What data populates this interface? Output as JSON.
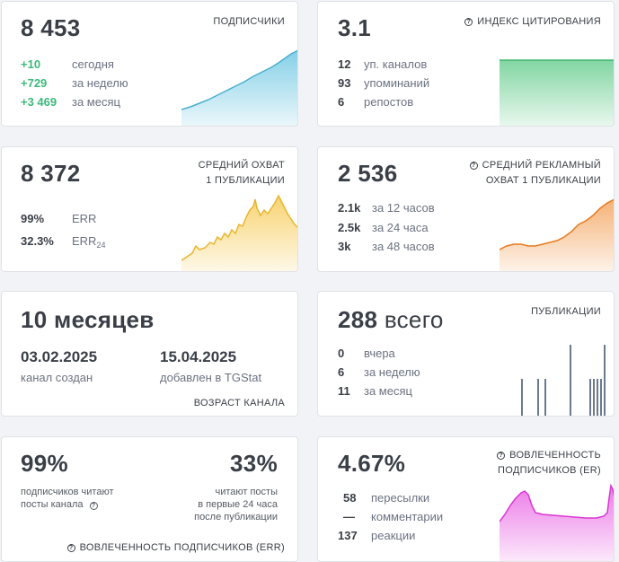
{
  "subscribers": {
    "value": "8 453",
    "caption": "ПОДПИСЧИКИ",
    "rows": [
      {
        "value": "+10",
        "label": "сегодня"
      },
      {
        "value": "+729",
        "label": "за неделю"
      },
      {
        "value": "+3 469",
        "label": "за месяц"
      }
    ],
    "color": "#5bc0de"
  },
  "citation": {
    "value": "3.1",
    "caption": "ИНДЕКС ЦИТИРОВАНИЯ",
    "rows": [
      {
        "value": "12",
        "label": "уп. каналов"
      },
      {
        "value": "93",
        "label": "упоминаний"
      },
      {
        "value": "6",
        "label": "репостов"
      }
    ],
    "color": "#4cc47a"
  },
  "avg_reach": {
    "value": "8 372",
    "caption_line1": "СРЕДНИЙ ОХВАТ",
    "caption_line2": "1 ПУБЛИКАЦИИ",
    "rows": [
      {
        "value": "99%",
        "label": "ERR"
      },
      {
        "value": "32.3%",
        "label": "ERR",
        "label_sub": "24"
      }
    ],
    "color": "#f5c542"
  },
  "ad_reach": {
    "value": "2 536",
    "caption_line1": "СРЕДНИЙ РЕКЛАМНЫЙ",
    "caption_line2": "ОХВАТ 1 ПУБЛИКАЦИИ",
    "rows": [
      {
        "value": "2.1k",
        "label": "за 12 часов"
      },
      {
        "value": "2.5k",
        "label": "за 24 часа"
      },
      {
        "value": "3k",
        "label": "за 48 часов"
      }
    ],
    "color": "#f0882c"
  },
  "age": {
    "value": "10 месяцев",
    "created_date": "03.02.2025",
    "created_label": "канал создан",
    "added_date": "15.04.2025",
    "added_label": "добавлен в TGStat",
    "caption": "ВОЗРАСТ КАНАЛА"
  },
  "publications": {
    "value_num": "288",
    "value_word": "всего",
    "caption": "ПУБЛИКАЦИИ",
    "rows": [
      {
        "value": "0",
        "label": "вчера"
      },
      {
        "value": "6",
        "label": "за неделю"
      },
      {
        "value": "11",
        "label": "за месяц"
      }
    ],
    "color": "#6b7a8c"
  },
  "err_engagement": {
    "value_left": "99%",
    "desc_left_line1": "подписчиков читают",
    "desc_left_line2": "посты канала",
    "value_right": "33%",
    "desc_right_line1": "читают посты",
    "desc_right_line2": "в первые 24 часа",
    "desc_right_line3": "после публикации",
    "caption": "ВОВЛЕЧЕННОСТЬ ПОДПИСЧИКОВ (ERR)"
  },
  "er_engagement": {
    "value": "4.67%",
    "caption_line1": "ВОВЛЕЧЕННОСТЬ",
    "caption_line2": "ПОДПИСЧИКОВ (ER)",
    "rows": [
      {
        "value": "58",
        "label": "пересылки"
      },
      {
        "value": "—",
        "label": "комментарии"
      },
      {
        "value": "137",
        "label": "реакции"
      }
    ],
    "color": "#e64fe0"
  }
}
